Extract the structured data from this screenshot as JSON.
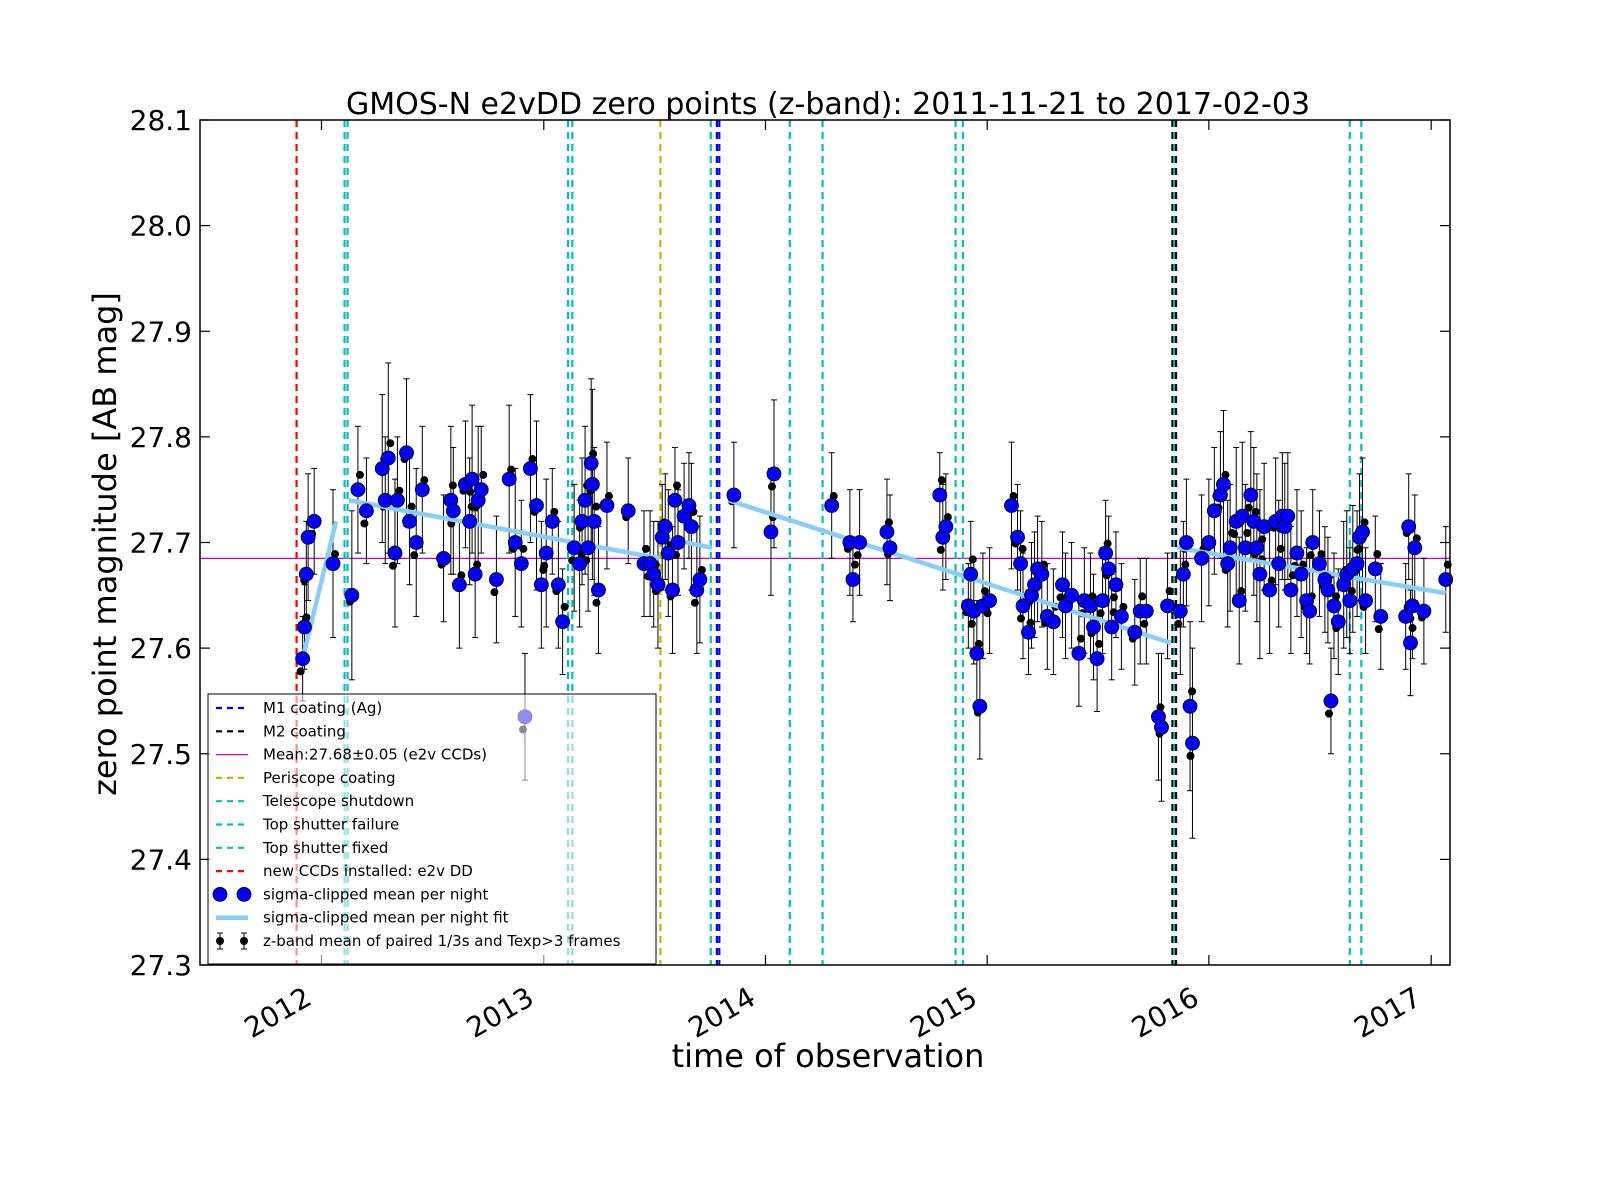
{
  "chart_data": {
    "type": "scatter",
    "title": "GMOS-N e2vDD zero points (z-band): 2011-11-21 to 2017-02-03",
    "xlabel": "time of observation",
    "ylabel": "zero point magnitude [AB mag]",
    "xlim": [
      "2011-06-15",
      "2017-02-01"
    ],
    "ylim": [
      27.3,
      28.1
    ],
    "x_ticks": [
      "2012",
      "2013",
      "2014",
      "2015",
      "2016",
      "2017"
    ],
    "y_ticks": [
      "27.3",
      "27.4",
      "27.5",
      "27.6",
      "27.7",
      "27.8",
      "27.9",
      "28.0",
      "28.1"
    ],
    "grid": false,
    "legend_position": "lower-left",
    "mean_value": 27.685,
    "colors": {
      "mean": "#cc00cc",
      "m1": "#0000ff",
      "m2": "#000000",
      "periscope": "#c8b400",
      "shutdown": "#00bfbf",
      "ccd": "#ff0000",
      "points": "#0000ff",
      "fit": "#87cefa",
      "errorbar": "#000000"
    },
    "legend": [
      {
        "label": "M1 coating (Ag)",
        "kind": "dash",
        "color": "#0000ff"
      },
      {
        "label": "M2 coating",
        "kind": "dash",
        "color": "#000000"
      },
      {
        "label": "Mean:27.68±0.05 (e2v CCDs)",
        "kind": "line",
        "color": "#cc00cc"
      },
      {
        "label": "Periscope coating",
        "kind": "dash",
        "color": "#c8b400"
      },
      {
        "label": "Telescope shutdown",
        "kind": "dash",
        "color": "#00bfbf"
      },
      {
        "label": "Top shutter failure",
        "kind": "dash",
        "color": "#00bfbf"
      },
      {
        "label": "Top shutter fixed",
        "kind": "dash",
        "color": "#00bfbf"
      },
      {
        "label": "new CCDs installed: e2v DD",
        "kind": "dash",
        "color": "#ff0000"
      },
      {
        "label": "sigma-clipped mean per night",
        "kind": "marker",
        "color": "#0000ff"
      },
      {
        "label": "sigma-clipped mean per night fit",
        "kind": "thick",
        "color": "#87cefa"
      },
      {
        "label": "z-band mean of paired 1/3s and Texp>3 frames",
        "kind": "errorbar",
        "color": "#000000"
      }
    ],
    "vlines": [
      {
        "x": "2011-11-21",
        "kind": "ccd"
      },
      {
        "x": "2012-02-08",
        "kind": "shutdown"
      },
      {
        "x": "2012-02-13",
        "kind": "shutdown"
      },
      {
        "x": "2013-02-10",
        "kind": "shutdown"
      },
      {
        "x": "2013-02-17",
        "kind": "shutdown"
      },
      {
        "x": "2013-07-12",
        "kind": "periscope"
      },
      {
        "x": "2013-10-03",
        "kind": "shutdown"
      },
      {
        "x": "2013-10-13",
        "kind": "m1"
      },
      {
        "x": "2013-10-17",
        "kind": "m1"
      },
      {
        "x": "2014-02-10",
        "kind": "shutdown"
      },
      {
        "x": "2014-04-05",
        "kind": "shutdown"
      },
      {
        "x": "2014-11-10",
        "kind": "shutdown"
      },
      {
        "x": "2014-11-22",
        "kind": "shutdown"
      },
      {
        "x": "2015-11-02",
        "kind": "m2"
      },
      {
        "x": "2015-11-05",
        "kind": "shutdown"
      },
      {
        "x": "2015-11-08",
        "kind": "m2"
      },
      {
        "x": "2016-08-20",
        "kind": "shutdown"
      },
      {
        "x": "2016-09-08",
        "kind": "shutdown"
      }
    ],
    "fit_segments": [
      {
        "x": [
          "2011-12-01",
          "2012-01-25"
        ],
        "y": [
          27.59,
          27.72
        ]
      },
      {
        "x": [
          "2012-02-15",
          "2013-07-10"
        ],
        "y": [
          27.74,
          27.685
        ]
      },
      {
        "x": [
          "2013-07-12",
          "2013-10-05"
        ],
        "y": [
          27.705,
          27.695
        ]
      },
      {
        "x": [
          "2013-11-01",
          "2015-10-30"
        ],
        "y": [
          27.74,
          27.605
        ]
      },
      {
        "x": [
          "2015-11-10",
          "2017-01-25"
        ],
        "y": [
          27.695,
          27.652
        ]
      }
    ],
    "series": [
      {
        "name": "sigma-clipped mean per night",
        "points": [
          [
            "2011-12-01",
            27.59,
            0.04
          ],
          [
            "2011-12-04",
            27.62,
            0.04
          ],
          [
            "2011-12-07",
            27.67,
            0.05
          ],
          [
            "2011-12-10",
            27.705,
            0.06
          ],
          [
            "2011-12-20",
            27.72,
            0.05
          ],
          [
            "2012-01-20",
            27.68,
            0.07
          ],
          [
            "2012-02-20",
            27.65,
            0.08
          ],
          [
            "2012-03-01",
            27.75,
            0.06
          ],
          [
            "2012-03-15",
            27.73,
            0.05
          ],
          [
            "2012-04-10",
            27.77,
            0.07
          ],
          [
            "2012-04-15",
            27.74,
            0.06
          ],
          [
            "2012-04-20",
            27.78,
            0.09
          ],
          [
            "2012-05-01",
            27.69,
            0.07
          ],
          [
            "2012-05-05",
            27.74,
            0.06
          ],
          [
            "2012-05-20",
            27.785,
            0.07
          ],
          [
            "2012-05-25",
            27.72,
            0.06
          ],
          [
            "2012-06-05",
            27.7,
            0.07
          ],
          [
            "2012-06-15",
            27.75,
            0.06
          ],
          [
            "2012-07-20",
            27.685,
            0.06
          ],
          [
            "2012-08-01",
            27.74,
            0.07
          ],
          [
            "2012-08-05",
            27.73,
            0.06
          ],
          [
            "2012-08-15",
            27.66,
            0.06
          ],
          [
            "2012-08-25",
            27.755,
            0.06
          ],
          [
            "2012-09-01",
            27.72,
            0.06
          ],
          [
            "2012-09-05",
            27.76,
            0.07
          ],
          [
            "2012-09-10",
            27.67,
            0.06
          ],
          [
            "2012-09-15",
            27.74,
            0.07
          ],
          [
            "2012-09-20",
            27.75,
            0.06
          ],
          [
            "2012-10-15",
            27.665,
            0.06
          ],
          [
            "2012-11-05",
            27.76,
            0.07
          ],
          [
            "2012-11-15",
            27.7,
            0.07
          ],
          [
            "2012-11-25",
            27.68,
            0.06
          ],
          [
            "2012-12-01",
            27.535,
            0.06
          ],
          [
            "2012-12-10",
            27.77,
            0.07
          ],
          [
            "2012-12-20",
            27.735,
            0.08
          ],
          [
            "2012-12-28",
            27.66,
            0.06
          ],
          [
            "2013-01-05",
            27.69,
            0.07
          ],
          [
            "2013-01-15",
            27.72,
            0.05
          ],
          [
            "2013-01-25",
            27.66,
            0.06
          ],
          [
            "2013-02-01",
            27.625,
            0.05
          ],
          [
            "2013-02-20",
            27.695,
            0.06
          ],
          [
            "2013-03-01",
            27.68,
            0.06
          ],
          [
            "2013-03-05",
            27.72,
            0.06
          ],
          [
            "2013-03-10",
            27.74,
            0.07
          ],
          [
            "2013-03-15",
            27.695,
            0.06
          ],
          [
            "2013-03-20",
            27.775,
            0.08
          ],
          [
            "2013-03-22",
            27.755,
            0.09
          ],
          [
            "2013-03-25",
            27.72,
            0.07
          ],
          [
            "2013-04-01",
            27.655,
            0.06
          ],
          [
            "2013-04-15",
            27.735,
            0.06
          ],
          [
            "2013-05-20",
            27.73,
            0.05
          ],
          [
            "2013-06-15",
            27.68,
            0.05
          ],
          [
            "2013-06-25",
            27.68,
            0.05
          ],
          [
            "2013-07-01",
            27.67,
            0.05
          ],
          [
            "2013-07-08",
            27.66,
            0.06
          ],
          [
            "2013-07-15",
            27.705,
            0.05
          ],
          [
            "2013-07-20",
            27.715,
            0.05
          ],
          [
            "2013-07-25",
            27.69,
            0.06
          ],
          [
            "2013-08-01",
            27.655,
            0.06
          ],
          [
            "2013-08-05",
            27.74,
            0.05
          ],
          [
            "2013-08-10",
            27.7,
            0.05
          ],
          [
            "2013-08-20",
            27.725,
            0.05
          ],
          [
            "2013-08-28",
            27.735,
            0.05
          ],
          [
            "2013-09-01",
            27.715,
            0.06
          ],
          [
            "2013-09-10",
            27.655,
            0.06
          ],
          [
            "2013-09-15",
            27.665,
            0.06
          ],
          [
            "2013-11-10",
            27.745,
            0.05
          ],
          [
            "2014-01-10",
            27.71,
            0.06
          ],
          [
            "2014-01-15",
            27.765,
            0.07
          ],
          [
            "2014-04-20",
            27.735,
            0.05
          ],
          [
            "2014-05-20",
            27.7,
            0.05
          ],
          [
            "2014-05-25",
            27.665,
            0.04
          ],
          [
            "2014-06-05",
            27.7,
            0.05
          ],
          [
            "2014-07-20",
            27.71,
            0.05
          ],
          [
            "2014-07-25",
            27.695,
            0.05
          ],
          [
            "2014-10-15",
            27.745,
            0.04
          ],
          [
            "2014-10-20",
            27.705,
            0.05
          ],
          [
            "2014-10-25",
            27.715,
            0.05
          ],
          [
            "2014-12-01",
            27.64,
            0.04
          ],
          [
            "2014-12-05",
            27.67,
            0.05
          ],
          [
            "2014-12-10",
            27.635,
            0.05
          ],
          [
            "2014-12-15",
            27.595,
            0.05
          ],
          [
            "2014-12-20",
            27.545,
            0.05
          ],
          [
            "2014-12-25",
            27.64,
            0.05
          ],
          [
            "2015-01-05",
            27.645,
            0.05
          ],
          [
            "2015-02-10",
            27.735,
            0.06
          ],
          [
            "2015-02-20",
            27.705,
            0.05
          ],
          [
            "2015-02-25",
            27.68,
            0.05
          ],
          [
            "2015-03-01",
            27.64,
            0.05
          ],
          [
            "2015-03-10",
            27.615,
            0.04
          ],
          [
            "2015-03-15",
            27.65,
            0.05
          ],
          [
            "2015-03-20",
            27.66,
            0.05
          ],
          [
            "2015-03-25",
            27.675,
            0.05
          ],
          [
            "2015-04-01",
            27.67,
            0.05
          ],
          [
            "2015-04-10",
            27.63,
            0.05
          ],
          [
            "2015-04-20",
            27.625,
            0.05
          ],
          [
            "2015-05-05",
            27.66,
            0.05
          ],
          [
            "2015-05-10",
            27.64,
            0.05
          ],
          [
            "2015-05-20",
            27.65,
            0.05
          ],
          [
            "2015-06-01",
            27.595,
            0.05
          ],
          [
            "2015-06-10",
            27.645,
            0.05
          ],
          [
            "2015-06-20",
            27.64,
            0.05
          ],
          [
            "2015-06-25",
            27.62,
            0.05
          ],
          [
            "2015-07-01",
            27.59,
            0.05
          ],
          [
            "2015-07-10",
            27.645,
            0.05
          ],
          [
            "2015-07-15",
            27.69,
            0.05
          ],
          [
            "2015-07-20",
            27.675,
            0.05
          ],
          [
            "2015-07-25",
            27.62,
            0.05
          ],
          [
            "2015-08-01",
            27.66,
            0.05
          ],
          [
            "2015-08-10",
            27.63,
            0.05
          ],
          [
            "2015-09-01",
            27.615,
            0.05
          ],
          [
            "2015-09-10",
            27.635,
            0.05
          ],
          [
            "2015-09-20",
            27.635,
            0.05
          ],
          [
            "2015-10-10",
            27.535,
            0.06
          ],
          [
            "2015-10-15",
            27.525,
            0.07
          ],
          [
            "2015-10-25",
            27.64,
            0.05
          ],
          [
            "2015-11-15",
            27.635,
            0.06
          ],
          [
            "2015-11-20",
            27.67,
            0.05
          ],
          [
            "2015-11-25",
            27.7,
            0.06
          ],
          [
            "2015-12-01",
            27.545,
            0.08
          ],
          [
            "2015-12-05",
            27.51,
            0.09
          ],
          [
            "2015-12-20",
            27.685,
            0.06
          ],
          [
            "2016-01-01",
            27.7,
            0.06
          ],
          [
            "2016-01-10",
            27.73,
            0.06
          ],
          [
            "2016-01-20",
            27.745,
            0.06
          ],
          [
            "2016-01-25",
            27.755,
            0.07
          ],
          [
            "2016-02-01",
            27.68,
            0.06
          ],
          [
            "2016-02-05",
            27.695,
            0.06
          ],
          [
            "2016-02-15",
            27.72,
            0.07
          ],
          [
            "2016-02-20",
            27.645,
            0.06
          ],
          [
            "2016-02-25",
            27.725,
            0.07
          ],
          [
            "2016-03-01",
            27.695,
            0.06
          ],
          [
            "2016-03-10",
            27.745,
            0.06
          ],
          [
            "2016-03-15",
            27.72,
            0.07
          ],
          [
            "2016-03-20",
            27.695,
            0.07
          ],
          [
            "2016-03-25",
            27.67,
            0.08
          ],
          [
            "2016-04-01",
            27.715,
            0.06
          ],
          [
            "2016-04-10",
            27.655,
            0.06
          ],
          [
            "2016-04-20",
            27.72,
            0.06
          ],
          [
            "2016-04-25",
            27.68,
            0.06
          ],
          [
            "2016-05-01",
            27.725,
            0.06
          ],
          [
            "2016-05-05",
            27.715,
            0.06
          ],
          [
            "2016-05-10",
            27.725,
            0.06
          ],
          [
            "2016-05-15",
            27.655,
            0.06
          ],
          [
            "2016-05-25",
            27.69,
            0.06
          ],
          [
            "2016-06-01",
            27.67,
            0.06
          ],
          [
            "2016-06-10",
            27.645,
            0.05
          ],
          [
            "2016-06-15",
            27.635,
            0.05
          ],
          [
            "2016-06-20",
            27.7,
            0.05
          ],
          [
            "2016-07-01",
            27.68,
            0.05
          ],
          [
            "2016-07-10",
            27.665,
            0.05
          ],
          [
            "2016-07-15",
            27.655,
            0.05
          ],
          [
            "2016-07-20",
            27.55,
            0.05
          ],
          [
            "2016-07-25",
            27.64,
            0.05
          ],
          [
            "2016-08-01",
            27.625,
            0.05
          ],
          [
            "2016-08-10",
            27.66,
            0.06
          ],
          [
            "2016-08-15",
            27.67,
            0.06
          ],
          [
            "2016-08-20",
            27.645,
            0.05
          ],
          [
            "2016-08-25",
            27.675,
            0.06
          ],
          [
            "2016-09-01",
            27.68,
            0.05
          ],
          [
            "2016-09-05",
            27.705,
            0.06
          ],
          [
            "2016-09-10",
            27.71,
            0.07
          ],
          [
            "2016-09-15",
            27.645,
            0.05
          ],
          [
            "2016-10-01",
            27.675,
            0.05
          ],
          [
            "2016-10-10",
            27.63,
            0.05
          ],
          [
            "2016-11-20",
            27.63,
            0.05
          ],
          [
            "2016-11-25",
            27.715,
            0.05
          ],
          [
            "2016-11-28",
            27.605,
            0.05
          ],
          [
            "2016-12-01",
            27.64,
            0.05
          ],
          [
            "2016-12-05",
            27.695,
            0.05
          ],
          [
            "2016-12-20",
            27.635,
            0.05
          ],
          [
            "2017-01-25",
            27.665,
            0.05
          ]
        ]
      }
    ]
  }
}
